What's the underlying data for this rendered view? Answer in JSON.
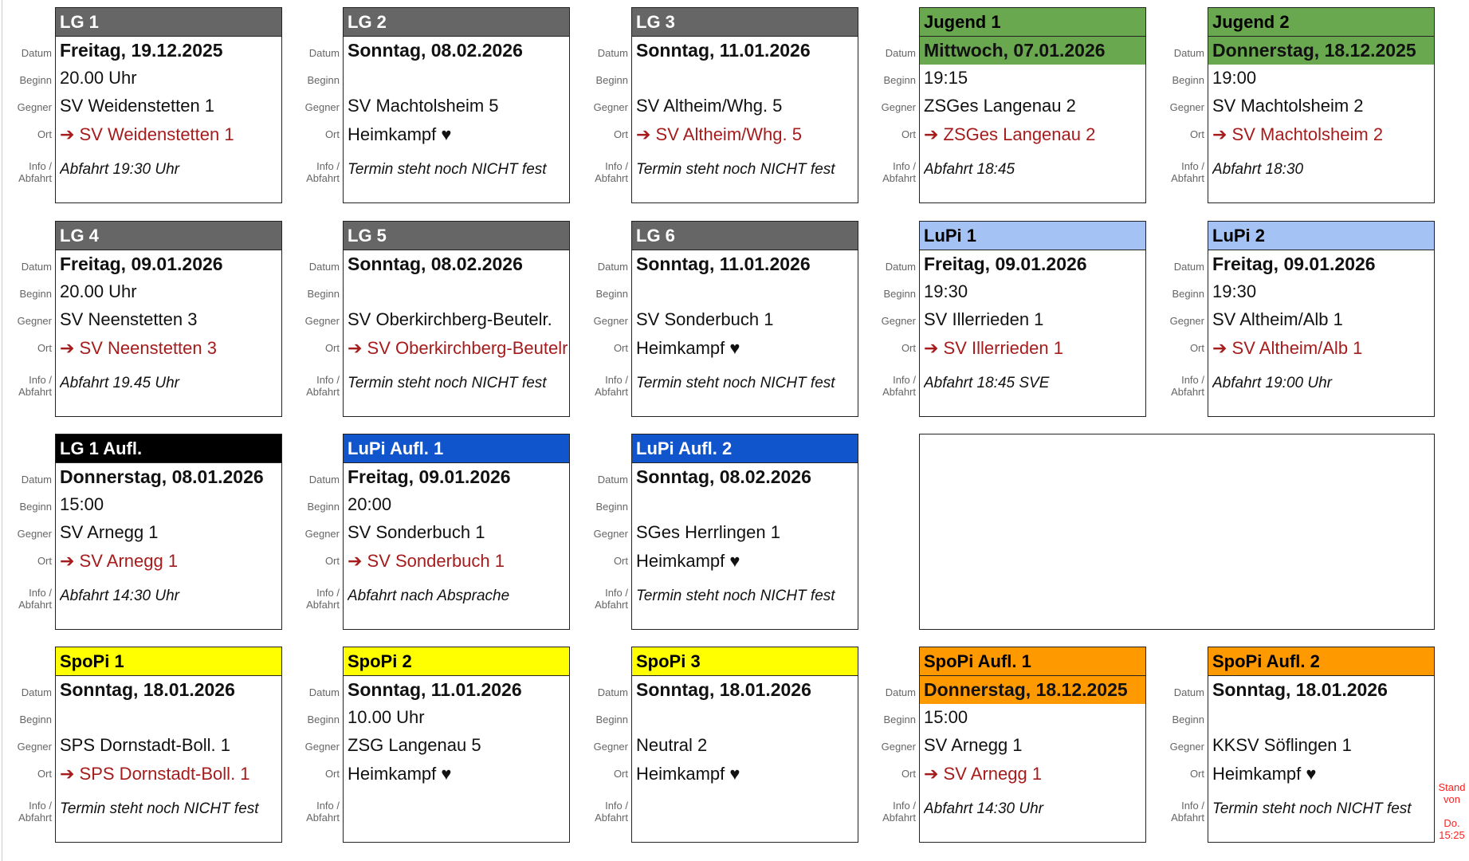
{
  "labels": {
    "datum": "Datum",
    "beginn": "Beginn",
    "gegner": "Gegner",
    "ort": "Ort",
    "info1": "Info /",
    "info2": "Abfahrt"
  },
  "colors": {
    "gray": "#666666",
    "green": "#6aa84f",
    "lightblue": "#a4c2f4",
    "black": "#000000",
    "blue": "#1155cc",
    "yellow": "#ffff00",
    "orange": "#ff9900",
    "away": "#a61c1c"
  },
  "cards": [
    {
      "title": "LG 1",
      "color": "gray",
      "date": "Freitag, 19.12.2025",
      "begin": "20.00 Uhr",
      "opponent": "SV Weidenstetten 1",
      "location": "➔ SV Weidenstetten 1",
      "away": true,
      "info": "Abfahrt 19:30 Uhr"
    },
    {
      "title": "LG 2",
      "color": "gray",
      "date": "Sonntag, 08.02.2026",
      "begin": "",
      "opponent": "SV Machtolsheim 5",
      "location": "Heimkampf ♥",
      "away": false,
      "info": "Termin steht noch NICHT fest"
    },
    {
      "title": "LG 3",
      "color": "gray",
      "date": "Sonntag, 11.01.2026",
      "begin": "",
      "opponent": "SV Altheim/Whg. 5",
      "location": "➔ SV Altheim/Whg. 5",
      "away": true,
      "info": "Termin steht noch NICHT fest"
    },
    {
      "title": "Jugend 1",
      "color": "green",
      "dateHl": true,
      "date": "Mittwoch, 07.01.2026",
      "begin": "19:15",
      "opponent": "ZSGes Langenau 2",
      "location": "➔ ZSGes Langenau 2",
      "away": true,
      "info": "Abfahrt 18:45"
    },
    {
      "title": "Jugend 2",
      "color": "green",
      "dateHl": true,
      "date": "Donnerstag, 18.12.2025",
      "begin": "19:00",
      "opponent": "SV Machtolsheim 2",
      "location": "➔ SV Machtolsheim 2",
      "away": true,
      "info": "Abfahrt 18:30"
    },
    {
      "title": "LG 4",
      "color": "gray",
      "date": "Freitag, 09.01.2026",
      "begin": "20.00 Uhr",
      "opponent": "SV Neenstetten 3",
      "location": "➔ SV Neenstetten 3",
      "away": true,
      "info": "Abfahrt 19.45 Uhr"
    },
    {
      "title": "LG 5",
      "color": "gray",
      "date": "Sonntag, 08.02.2026",
      "begin": "",
      "opponent": "SV Oberkirchberg-Beutelr.",
      "location": "➔ SV Oberkirchberg-Beutelr.",
      "away": true,
      "info": "Termin steht noch NICHT fest"
    },
    {
      "title": "LG 6",
      "color": "gray",
      "date": "Sonntag, 11.01.2026",
      "begin": "",
      "opponent": "SV Sonderbuch 1",
      "location": "Heimkampf ♥",
      "away": false,
      "info": "Termin steht noch NICHT fest"
    },
    {
      "title": "LuPi 1",
      "color": "lightblue",
      "date": "Freitag, 09.01.2026",
      "begin": "19:30",
      "opponent": "SV Illerrieden 1",
      "location": "➔ SV Illerrieden 1",
      "away": true,
      "info": "Abfahrt 18:45 SVE"
    },
    {
      "title": "LuPi 2",
      "color": "lightblue",
      "date": "Freitag, 09.01.2026",
      "begin": "19:30",
      "opponent": "SV Altheim/Alb 1",
      "location": "➔ SV Altheim/Alb 1",
      "away": true,
      "info": "Abfahrt 19:00 Uhr"
    },
    {
      "title": "LG 1 Aufl.",
      "color": "black",
      "date": "Donnerstag, 08.01.2026",
      "begin": "15:00",
      "opponent": "SV Arnegg 1",
      "location": "➔ SV Arnegg 1",
      "away": true,
      "info": "Abfahrt 14:30 Uhr"
    },
    {
      "title": "LuPi Aufl. 1",
      "color": "blue",
      "date": "Freitag, 09.01.2026",
      "begin": "20:00",
      "opponent": "SV Sonderbuch 1",
      "location": "➔ SV Sonderbuch 1",
      "away": true,
      "info": "Abfahrt nach Absprache"
    },
    {
      "title": "LuPi Aufl. 2",
      "color": "blue",
      "date": "Sonntag, 08.02.2026",
      "begin": "",
      "opponent": "SGes Herrlingen 1",
      "location": "Heimkampf ♥",
      "away": false,
      "info": "Termin steht noch NICHT fest"
    },
    null,
    null,
    {
      "title": "SpoPi 1",
      "color": "yellow",
      "date": "Sonntag, 18.01.2026",
      "begin": "",
      "opponent": "SPS Dornstadt-Boll. 1",
      "location": "➔ SPS Dornstadt-Boll. 1",
      "away": true,
      "info": "Termin steht noch NICHT fest"
    },
    {
      "title": "SpoPi 2",
      "color": "yellow",
      "date": "Sonntag, 11.01.2026",
      "begin": "10.00 Uhr",
      "opponent": "ZSG Langenau 5",
      "location": "Heimkampf ♥",
      "away": false,
      "info": ""
    },
    {
      "title": "SpoPi 3",
      "color": "yellow",
      "date": "Sonntag, 18.01.2026",
      "begin": "",
      "opponent": "Neutral 2",
      "location": "Heimkampf ♥",
      "away": false,
      "info": ""
    },
    {
      "title": "SpoPi Aufl. 1",
      "color": "orange",
      "dateHl": true,
      "date": "Donnerstag, 18.12.2025",
      "begin": "15:00",
      "opponent": "SV Arnegg 1",
      "location": "➔ SV Arnegg 1",
      "away": true,
      "info": "Abfahrt 14:30 Uhr"
    },
    {
      "title": "SpoPi Aufl. 2",
      "color": "orange",
      "date": "Sonntag, 18.01.2026",
      "begin": "",
      "opponent": "KKSV Söflingen 1",
      "location": "Heimkampf ♥",
      "away": false,
      "info": "Termin steht noch NICHT fest"
    }
  ],
  "stand": {
    "line1": "Stand",
    "line2": "von",
    "line3": "Do.",
    "line4": "15:25"
  }
}
